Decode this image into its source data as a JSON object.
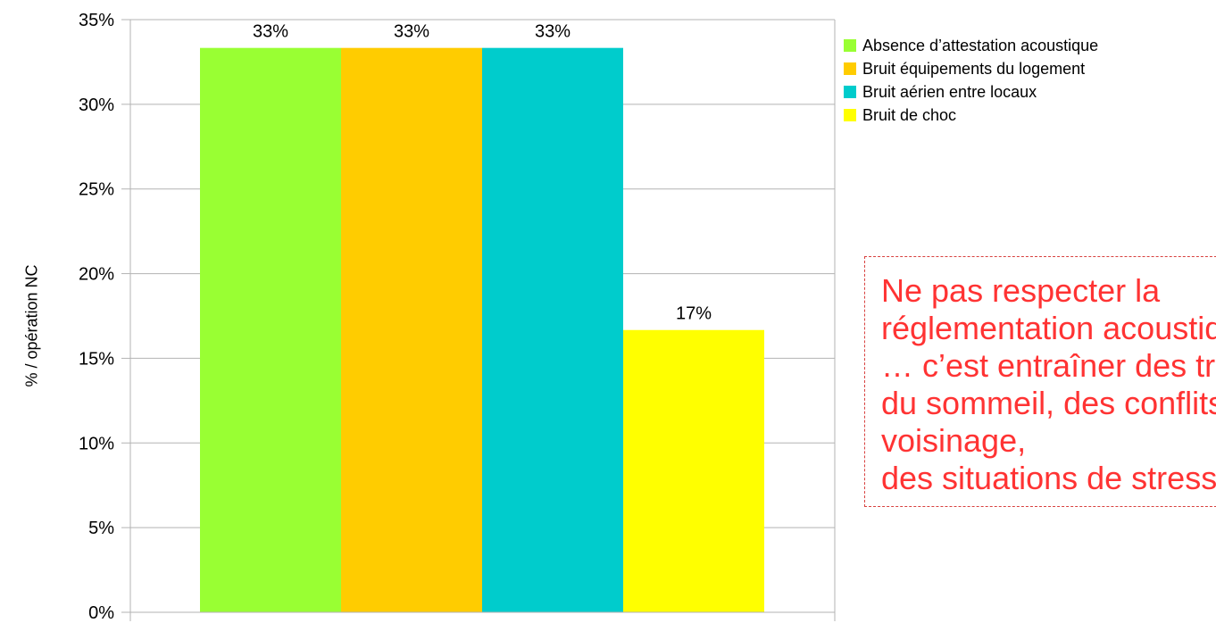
{
  "chart_data": {
    "type": "bar",
    "title": "",
    "xlabel": "",
    "ylabel": "% / opération NC",
    "ylim": [
      0,
      35
    ],
    "yticks": [
      0,
      5,
      10,
      15,
      20,
      25,
      30,
      35
    ],
    "y_tick_format": "{v}%",
    "grid": true,
    "legend_position": "right",
    "series": [
      {
        "name": "Absence d’attestation acoustique",
        "value": 33.33,
        "label": "33%",
        "color": "#99ff33"
      },
      {
        "name": "Bruit équipements du logement",
        "value": 33.33,
        "label": "33%",
        "color": "#ffcc00"
      },
      {
        "name": "Bruit aérien entre locaux",
        "value": 33.33,
        "label": "33%",
        "color": "#00cccc"
      },
      {
        "name": "Bruit de choc",
        "value": 16.67,
        "label": "17%",
        "color": "#ffff00"
      }
    ]
  },
  "callout": {
    "text": "Ne pas respecter la réglementation acoustique\n… c’est entraîner des troubles du sommeil, des conflits de voisinage,\ndes situations de stress…",
    "color": "#ff3333",
    "border_color": "#d8413f"
  }
}
